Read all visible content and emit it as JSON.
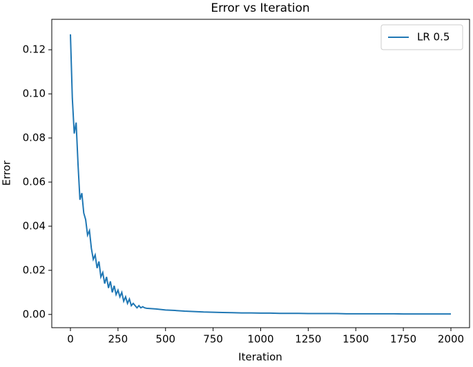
{
  "chart_data": {
    "type": "line",
    "title": "Error vs Iteration",
    "x_label": "Iteration",
    "y_label": "Error",
    "legend": "upper right",
    "x": [
      0,
      10,
      20,
      30,
      40,
      50,
      60,
      70,
      80,
      90,
      100,
      110,
      120,
      130,
      140,
      150,
      160,
      170,
      180,
      190,
      200,
      210,
      220,
      230,
      240,
      250,
      260,
      270,
      280,
      290,
      300,
      310,
      320,
      330,
      340,
      350,
      360,
      370,
      380,
      390,
      400,
      450,
      500,
      550,
      600,
      650,
      700,
      750,
      800,
      850,
      900,
      950,
      1000,
      1050,
      1100,
      1150,
      1200,
      1250,
      1300,
      1350,
      1400,
      1450,
      1500,
      1550,
      1600,
      1650,
      1700,
      1750,
      1800,
      1850,
      1900,
      1950,
      2000
    ],
    "series": [
      {
        "name": "LR 0.5",
        "color": "#1f77b4",
        "values": [
          0.127,
          0.098,
          0.082,
          0.087,
          0.068,
          0.052,
          0.055,
          0.046,
          0.043,
          0.036,
          0.038,
          0.03,
          0.025,
          0.027,
          0.021,
          0.024,
          0.017,
          0.019,
          0.014,
          0.017,
          0.012,
          0.015,
          0.01,
          0.013,
          0.009,
          0.011,
          0.008,
          0.01,
          0.006,
          0.008,
          0.005,
          0.007,
          0.004,
          0.005,
          0.004,
          0.003,
          0.004,
          0.003,
          0.0035,
          0.003,
          0.0028,
          0.0025,
          0.002,
          0.0018,
          0.0015,
          0.0013,
          0.0011,
          0.001,
          0.0009,
          0.0008,
          0.0007,
          0.0007,
          0.0006,
          0.0006,
          0.0005,
          0.0005,
          0.0005,
          0.0004,
          0.0004,
          0.0004,
          0.0004,
          0.0003,
          0.0003,
          0.0003,
          0.0003,
          0.0003,
          0.0003,
          0.0002,
          0.0002,
          0.0002,
          0.0002,
          0.0002,
          0.0002
        ]
      }
    ],
    "xlim": [
      -98,
      2098
    ],
    "ylim": [
      -0.006,
      0.1338
    ],
    "xticks": [
      0,
      250,
      500,
      750,
      1000,
      1250,
      1500,
      1750,
      2000
    ],
    "yticks": [
      {
        "value": 0,
        "label": "0.00"
      },
      {
        "value": 0.02,
        "label": "0.02"
      },
      {
        "value": 0.04,
        "label": "0.04"
      },
      {
        "value": 0.06,
        "label": "0.06"
      },
      {
        "value": 0.08,
        "label": "0.08"
      },
      {
        "value": 0.1,
        "label": "0.10"
      },
      {
        "value": 0.12,
        "label": "0.12"
      }
    ]
  }
}
